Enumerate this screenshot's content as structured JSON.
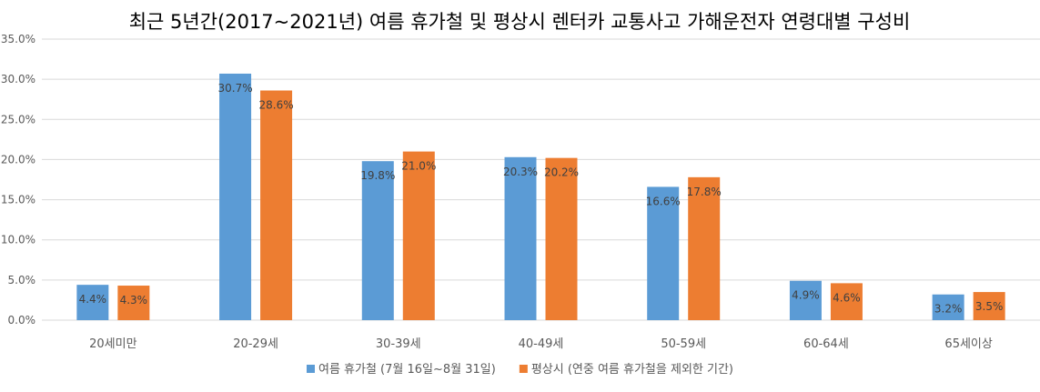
{
  "chart_data": {
    "type": "bar",
    "title": "최근 5년간(2017~2021년) 여름 휴가철 및 평상시 렌터카 교통사고 가해운전자 연령대별 구성비",
    "categories": [
      "20세미만",
      "20-29세",
      "30-39세",
      "40-49세",
      "50-59세",
      "60-64세",
      "65세이상"
    ],
    "series": [
      {
        "name": "여름 휴가철 (7월 16일~8월 31일)",
        "values": [
          4.4,
          30.7,
          19.8,
          20.3,
          16.6,
          4.9,
          3.2
        ],
        "labels": [
          "4.4%",
          "30.7%",
          "19.8%",
          "20.3%",
          "16.6%",
          "4.9%",
          "3.2%"
        ],
        "color": "#5B9BD5"
      },
      {
        "name": "평상시 (연중 여름 휴가철을 제외한 기간)",
        "values": [
          4.3,
          28.6,
          21.0,
          20.2,
          17.8,
          4.6,
          3.5
        ],
        "labels": [
          "4.3%",
          "28.6%",
          "21.0%",
          "20.2%",
          "17.8%",
          "4.6%",
          "3.5%"
        ],
        "color": "#ED7D31"
      }
    ],
    "ylim": [
      0,
      35
    ],
    "yticks": [
      0,
      5,
      10,
      15,
      20,
      25,
      30,
      35
    ],
    "ytick_labels": [
      "0.0%",
      "5.0%",
      "10.0%",
      "15.0%",
      "20.0%",
      "25.0%",
      "30.0%",
      "35.0%"
    ],
    "grid": true,
    "legend_position": "bottom"
  }
}
